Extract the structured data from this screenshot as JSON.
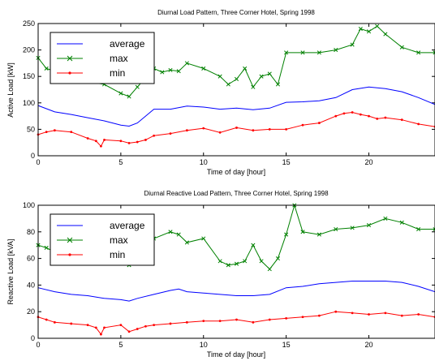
{
  "chart_data": [
    {
      "type": "line",
      "title": "Diurnal Load Pattern, Three Corner Hotel, Spring 1998",
      "xlabel": "Time of day [hour]",
      "ylabel": "Active Load [kW]",
      "xlim": [
        0,
        24
      ],
      "ylim": [
        0,
        250
      ],
      "xticks": [
        0,
        5,
        10,
        15,
        20
      ],
      "yticks": [
        0,
        50,
        100,
        150,
        200,
        250
      ],
      "grid": false,
      "legend_position": "top-left",
      "series": [
        {
          "name": "average",
          "color": "#0000ff",
          "marker": "none",
          "x": [
            0,
            1,
            2,
            3,
            4,
            5,
            5.5,
            6,
            7,
            8,
            9,
            10,
            11,
            12,
            13,
            14,
            15,
            16,
            17,
            18,
            19,
            20,
            21,
            22,
            23,
            24
          ],
          "y": [
            95,
            83,
            78,
            72,
            66,
            58,
            56,
            62,
            88,
            88,
            94,
            92,
            88,
            90,
            87,
            90,
            101,
            102,
            104,
            110,
            125,
            130,
            127,
            121,
            110,
            97
          ]
        },
        {
          "name": "max",
          "color": "#008000",
          "marker": "x",
          "x": [
            0,
            0.5,
            1,
            2,
            3,
            4,
            5,
            5.5,
            6,
            7,
            7.5,
            8,
            8.5,
            9,
            10,
            11,
            11.5,
            12,
            12.5,
            13,
            13.5,
            14,
            14.5,
            15,
            16,
            17,
            18,
            19,
            19.5,
            20,
            20.5,
            21,
            22,
            23,
            24
          ],
          "y": [
            185,
            165,
            160,
            145,
            140,
            135,
            118,
            112,
            130,
            165,
            158,
            162,
            160,
            175,
            165,
            150,
            135,
            145,
            165,
            130,
            150,
            155,
            135,
            195,
            195,
            195,
            200,
            210,
            240,
            235,
            245,
            230,
            205,
            195,
            195
          ]
        },
        {
          "name": "min",
          "color": "#ff0000",
          "marker": "dot",
          "x": [
            0,
            0.5,
            1,
            2,
            3,
            3.5,
            3.8,
            4,
            5,
            5.5,
            6,
            6.5,
            7,
            8,
            9,
            10,
            11,
            12,
            13,
            14,
            15,
            16,
            17,
            18,
            18.5,
            19,
            19.5,
            20,
            20.5,
            21,
            22,
            23,
            24
          ],
          "y": [
            40,
            45,
            48,
            45,
            33,
            28,
            18,
            30,
            28,
            24,
            26,
            30,
            38,
            42,
            48,
            52,
            44,
            53,
            48,
            50,
            50,
            58,
            62,
            75,
            80,
            82,
            78,
            75,
            70,
            72,
            68,
            60,
            55
          ]
        }
      ]
    },
    {
      "type": "line",
      "title": "Diurnal Reactive Load Pattern, Three Corner Hotel, Spring 1998",
      "xlabel": "Time of day [hour]",
      "ylabel": "Reactive Load [kVA]",
      "xlim": [
        0,
        24
      ],
      "ylim": [
        0,
        100
      ],
      "xticks": [
        0,
        5,
        10,
        15,
        20
      ],
      "yticks": [
        0,
        20,
        40,
        60,
        80,
        100
      ],
      "grid": false,
      "legend_position": "top-left",
      "series": [
        {
          "name": "average",
          "color": "#0000ff",
          "marker": "none",
          "x": [
            0,
            1,
            2,
            3,
            4,
            5,
            5.5,
            6,
            7,
            8,
            8.5,
            9,
            10,
            11,
            12,
            13,
            14,
            15,
            16,
            17,
            18,
            19,
            20,
            21,
            22,
            23,
            24
          ],
          "y": [
            38,
            35,
            33,
            32,
            30,
            29,
            28,
            30,
            33,
            36,
            37,
            35,
            34,
            33,
            32,
            32,
            33,
            38,
            39,
            41,
            42,
            43,
            43,
            43,
            42,
            39,
            35
          ]
        },
        {
          "name": "max",
          "color": "#008000",
          "marker": "x",
          "x": [
            0,
            0.5,
            1,
            2,
            3,
            4,
            5,
            5.5,
            6,
            7,
            8,
            8.5,
            9,
            10,
            11,
            11.5,
            12,
            12.5,
            13,
            13.5,
            14,
            14.5,
            15,
            15.5,
            16,
            17,
            18,
            19,
            20,
            21,
            22,
            23,
            24
          ],
          "y": [
            70,
            68,
            65,
            62,
            60,
            62,
            58,
            55,
            60,
            75,
            80,
            78,
            72,
            75,
            58,
            55,
            56,
            58,
            70,
            58,
            52,
            60,
            78,
            100,
            80,
            78,
            82,
            83,
            85,
            90,
            87,
            82,
            82
          ]
        },
        {
          "name": "min",
          "color": "#ff0000",
          "marker": "dot",
          "x": [
            0,
            0.5,
            1,
            2,
            3,
            3.5,
            3.8,
            4,
            5,
            5.5,
            6,
            6.5,
            7,
            8,
            9,
            10,
            11,
            12,
            13,
            14,
            15,
            16,
            17,
            18,
            19,
            20,
            21,
            22,
            23,
            24
          ],
          "y": [
            16,
            14,
            12,
            11,
            10,
            8,
            3,
            8,
            10,
            5,
            7,
            9,
            10,
            11,
            12,
            13,
            13,
            14,
            12,
            14,
            15,
            16,
            17,
            20,
            19,
            18,
            19,
            17,
            18,
            16
          ]
        }
      ]
    }
  ]
}
